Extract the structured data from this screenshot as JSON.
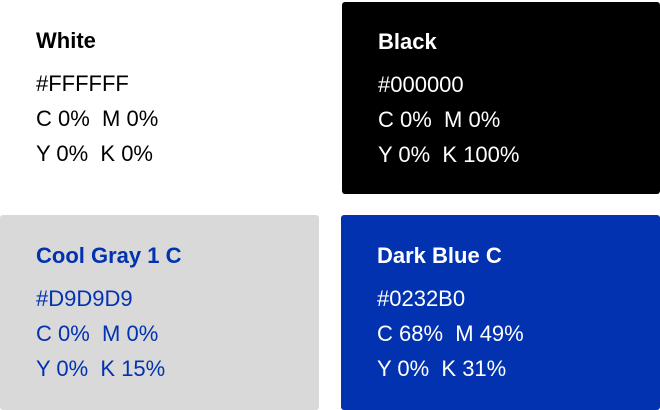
{
  "swatches": {
    "white": {
      "name": "White",
      "hex": "#FFFFFF",
      "cm": "C 0%  M 0%",
      "yk": "Y 0%  K 0%",
      "bg_color": "#FFFFFF",
      "text_color": "#000000",
      "title_color": "#000000"
    },
    "black": {
      "name": "Black",
      "hex": "#000000",
      "cm": "C 0%  M 0%",
      "yk": "Y 0%  K 100%",
      "bg_color": "#000000",
      "text_color": "#FFFFFF",
      "title_color": "#FFFFFF"
    },
    "cool_gray": {
      "name": "Cool Gray 1 C",
      "hex": "#D9D9D9",
      "cm": "C 0%  M 0%",
      "yk": "Y 0%  K 15%",
      "bg_color": "#D9D9D9",
      "text_color": "#0232B0",
      "title_color": "#0232B0"
    },
    "dark_blue": {
      "name": "Dark Blue C",
      "hex": "#0232B0",
      "cm": "C 68%  M 49%",
      "yk": "Y 0%  K 31%",
      "bg_color": "#0232B0",
      "text_color": "#FFFFFF",
      "title_color": "#FFFFFF"
    }
  }
}
